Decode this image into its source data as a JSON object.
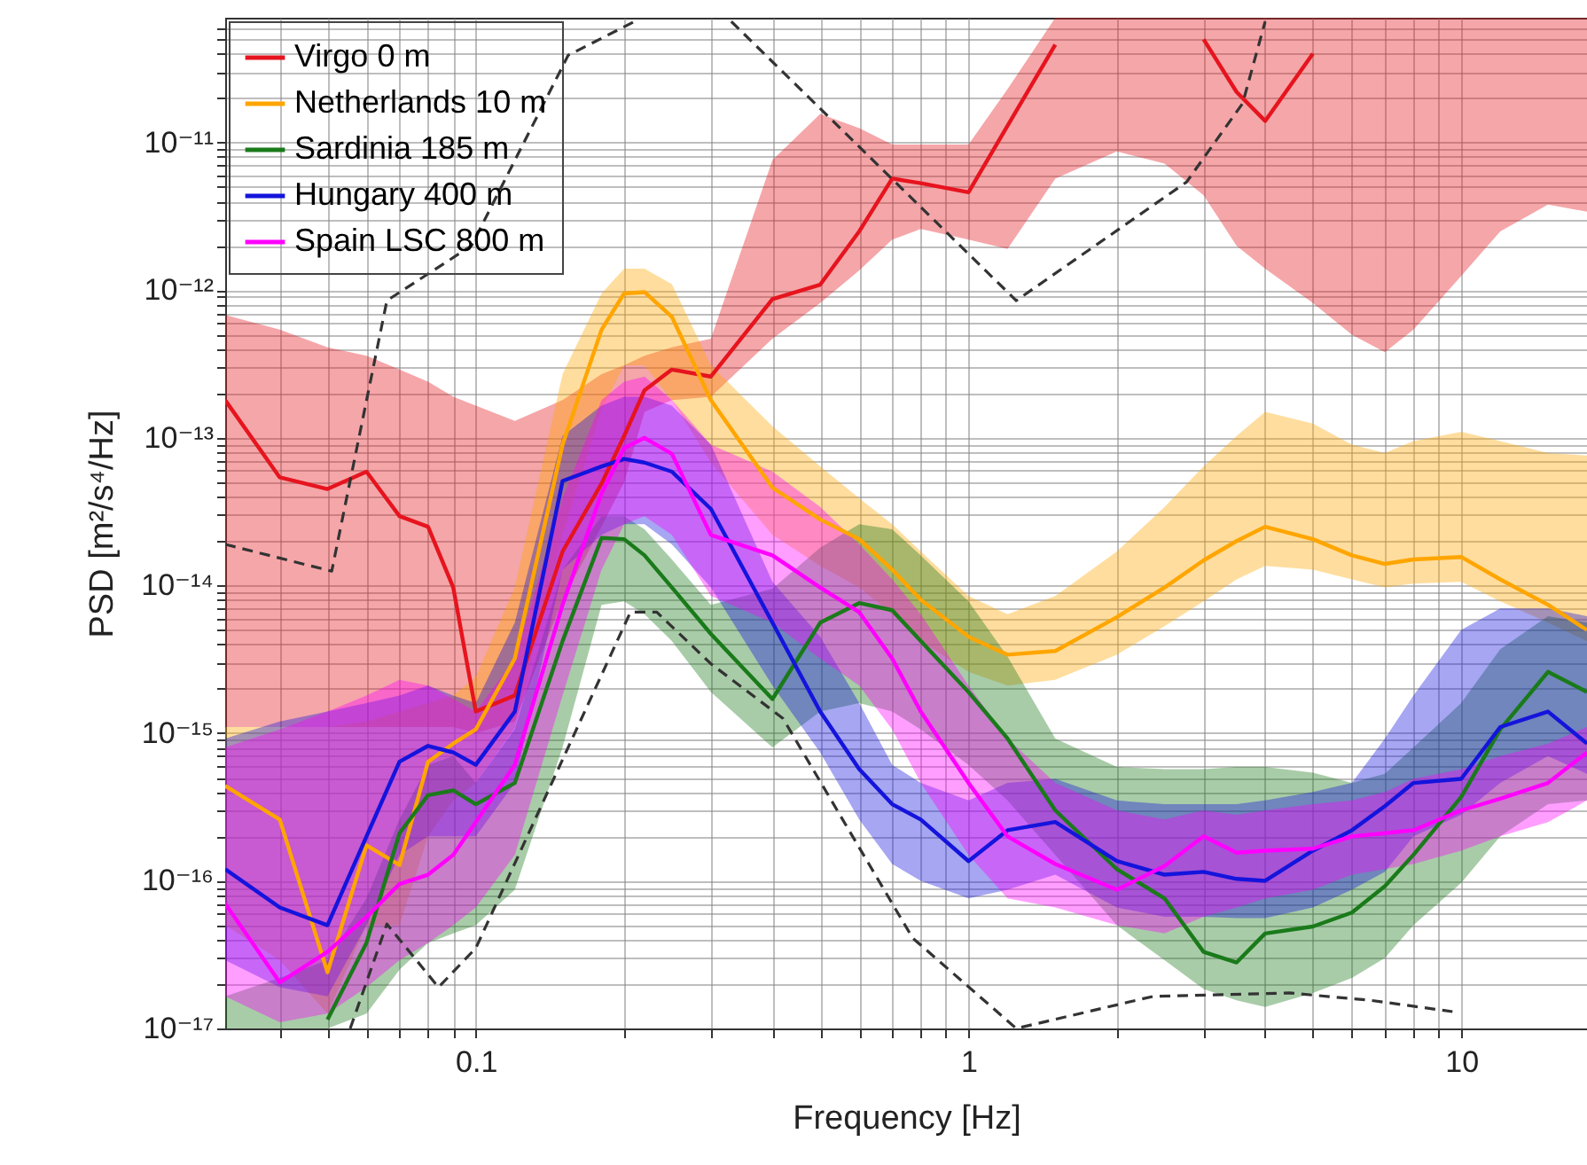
{
  "chart_data": {
    "type": "line",
    "xlabel": "Frequency [Hz]",
    "ylabel": "PSD [m²/s⁴/Hz]",
    "log": "xy",
    "grid": true,
    "legend": "top left",
    "xlim": [
      0.031,
      18
    ],
    "ylim": [
      1e-17,
      7e-11
    ],
    "xticks": [
      {
        "value": 0.04,
        "label": null
      },
      {
        "value": 0.05,
        "label": null
      },
      {
        "value": 0.06,
        "label": null
      },
      {
        "value": 0.07,
        "label": null
      },
      {
        "value": 0.08,
        "label": null
      },
      {
        "value": 0.09,
        "label": null
      },
      0.1,
      {
        "value": 0.2,
        "label": null
      },
      {
        "value": 0.3,
        "label": null
      },
      {
        "value": 0.4,
        "label": null
      },
      {
        "value": 0.5,
        "label": null
      },
      {
        "value": 0.6,
        "label": null
      },
      {
        "value": 0.7,
        "label": null
      },
      {
        "value": 0.8,
        "label": null
      },
      {
        "value": 0.9,
        "label": null
      },
      1,
      {
        "value": 2,
        "label": null
      },
      {
        "value": 3,
        "label": null
      },
      {
        "value": 4,
        "label": null
      },
      {
        "value": 5,
        "label": null
      },
      {
        "value": 6,
        "label": null
      },
      {
        "value": 7,
        "label": null
      },
      {
        "value": 8,
        "label": null
      },
      {
        "value": 9,
        "label": null
      },
      10
    ],
    "yticks": [
      {
        "value": 1e-17,
        "label": "10⁻¹⁷"
      },
      {
        "value": 2e-17,
        "label": null
      },
      {
        "value": 3e-17,
        "label": null
      },
      {
        "value": 4e-17,
        "label": null
      },
      {
        "value": 5e-17,
        "label": null
      },
      {
        "value": 6e-17,
        "label": null
      },
      {
        "value": 7e-17,
        "label": null
      },
      {
        "value": 8e-17,
        "label": null
      },
      {
        "value": 9e-17,
        "label": null
      },
      {
        "value": 1e-16,
        "label": "10⁻¹⁶"
      },
      {
        "value": 2e-16,
        "label": null
      },
      {
        "value": 3e-16,
        "label": null
      },
      {
        "value": 4e-16,
        "label": null
      },
      {
        "value": 5e-16,
        "label": null
      },
      {
        "value": 6e-16,
        "label": null
      },
      {
        "value": 7e-16,
        "label": null
      },
      {
        "value": 8e-16,
        "label": null
      },
      {
        "value": 9e-16,
        "label": null
      },
      {
        "value": 1e-15,
        "label": "10⁻¹⁵"
      },
      {
        "value": 2e-15,
        "label": null
      },
      {
        "value": 3e-15,
        "label": null
      },
      {
        "value": 4e-15,
        "label": null
      },
      {
        "value": 5e-15,
        "label": null
      },
      {
        "value": 6e-15,
        "label": null
      },
      {
        "value": 7e-15,
        "label": null
      },
      {
        "value": 8e-15,
        "label": null
      },
      {
        "value": 9e-15,
        "label": null
      },
      {
        "value": 1e-14,
        "label": "10⁻¹⁴"
      },
      {
        "value": 2e-14,
        "label": null
      },
      {
        "value": 3e-14,
        "label": null
      },
      {
        "value": 4e-14,
        "label": null
      },
      {
        "value": 5e-14,
        "label": null
      },
      {
        "value": 6e-14,
        "label": null
      },
      {
        "value": 7e-14,
        "label": null
      },
      {
        "value": 8e-14,
        "label": null
      },
      {
        "value": 9e-14,
        "label": null
      },
      {
        "value": 1e-13,
        "label": "10⁻¹³"
      },
      {
        "value": 2e-13,
        "label": null
      },
      {
        "value": 3e-13,
        "label": null
      },
      {
        "value": 4e-13,
        "label": null
      },
      {
        "value": 5e-13,
        "label": null
      },
      {
        "value": 6e-13,
        "label": null
      },
      {
        "value": 7e-13,
        "label": null
      },
      {
        "value": 8e-13,
        "label": null
      },
      {
        "value": 9e-13,
        "label": null
      },
      {
        "value": 1e-12,
        "label": "10⁻¹²"
      },
      {
        "value": 2e-12,
        "label": null
      },
      {
        "value": 3e-12,
        "label": null
      },
      {
        "value": 4e-12,
        "label": null
      },
      {
        "value": 5e-12,
        "label": null
      },
      {
        "value": 6e-12,
        "label": null
      },
      {
        "value": 7e-12,
        "label": null
      },
      {
        "value": 8e-12,
        "label": null
      },
      {
        "value": 9e-12,
        "label": null
      },
      {
        "value": 1e-11,
        "label": "10⁻¹¹"
      },
      {
        "value": 2e-11,
        "label": null
      },
      {
        "value": 3e-11,
        "label": null
      },
      {
        "value": 4e-11,
        "label": null
      },
      {
        "value": 5e-11,
        "label": null
      },
      {
        "value": 6e-11,
        "label": null
      }
    ],
    "x": [
      0.031,
      0.04,
      0.05,
      0.06,
      0.07,
      0.08,
      0.09,
      0.1,
      0.12,
      0.15,
      0.18,
      0.2,
      0.22,
      0.25,
      0.3,
      0.4,
      0.5,
      0.6,
      0.7,
      0.8,
      1,
      1.2,
      1.5,
      2,
      2.5,
      3,
      3.5,
      4,
      5,
      6,
      7,
      8,
      10,
      12,
      15,
      18
    ],
    "series": [
      {
        "name": "Virgo 0 m",
        "color": "#e6141e",
        "values": [
          1.8e-13,
          5.4e-14,
          4.5e-14,
          5.9e-14,
          2.95e-14,
          2.5e-14,
          9.7e-15,
          1.4e-15,
          1.8e-15,
          1.7e-14,
          4.9e-14,
          1.03e-13,
          2.1e-13,
          2.9e-13,
          2.6e-13,
          8.7e-13,
          1.09e-12,
          2.5e-12,
          5.7e-12,
          5.3e-12,
          4.6e-12,
          1.3e-11,
          4.6e-11,
          null,
          null,
          5e-11,
          2.2e-11,
          1.4e-11,
          4e-11,
          null,
          null,
          null,
          null,
          null,
          null,
          null
        ],
        "lower": [
          1.1e-15,
          1.1e-15,
          1.1e-15,
          1.1e-15,
          1.1e-15,
          1.1e-15,
          1.1e-15,
          1e-15,
          1.2e-15,
          8e-15,
          2.5e-14,
          5e-14,
          1.5e-13,
          1.8e-13,
          1.9e-13,
          4.7e-13,
          8.2e-13,
          1.36e-12,
          2.2e-12,
          2.6e-12,
          2.2e-12,
          1.9e-12,
          5.7e-12,
          8.7e-12,
          7.2e-12,
          4.4e-12,
          2e-12,
          1.4e-12,
          8.2e-13,
          5e-13,
          3.8e-13,
          5.4e-13,
          1.25e-12,
          2.5e-12,
          3.8e-12,
          3.4e-12
        ],
        "upper": [
          6.8e-13,
          5.4e-13,
          4.1e-13,
          3.6e-13,
          2.9e-13,
          2.4e-13,
          1.9e-13,
          1.65e-13,
          1.3e-13,
          1.8e-13,
          2.7e-13,
          3.1e-13,
          3.6e-13,
          4.1e-13,
          4.7e-13,
          7.6e-12,
          1.56e-11,
          1.25e-11,
          9.7e-12,
          9.7e-12,
          9.7e-12,
          2.3e-11,
          7e-11,
          7e-11,
          7e-11,
          7e-11,
          7e-11,
          7e-11,
          7e-11,
          7e-11,
          7e-11,
          7e-11,
          7e-11,
          7e-11,
          7e-11,
          7e-11
        ]
      },
      {
        "name": "Netherlands 10 m",
        "color": "#ffa500",
        "values": [
          4.4e-16,
          2.6e-16,
          2.4e-17,
          1.74e-16,
          1.28e-16,
          6.4e-16,
          8.5e-16,
          1.06e-15,
          3.2e-15,
          9e-14,
          5.4e-13,
          9.5e-13,
          9.7e-13,
          6.6e-13,
          1.8e-13,
          4.6e-14,
          2.8e-14,
          2.06e-14,
          1.28e-14,
          8e-15,
          4.5e-15,
          3.4e-15,
          3.6e-15,
          6.1e-15,
          9.7e-15,
          1.48e-14,
          2e-14,
          2.5e-14,
          2.06e-14,
          1.6e-14,
          1.4e-14,
          1.5e-14,
          1.56e-14,
          1.1e-14,
          7.4e-15,
          5e-15
        ],
        "lower": [
          5e-17,
          2.9e-17,
          1.26e-17,
          5e-17,
          5e-17,
          2e-16,
          3.5e-16,
          4.6e-16,
          1.1e-15,
          2.2e-14,
          1.56e-13,
          3.1e-13,
          3.1e-13,
          1.8e-13,
          6.8e-14,
          2.2e-14,
          1.36e-14,
          9.7e-15,
          6.4e-15,
          4.2e-15,
          2.6e-15,
          2.1e-15,
          2.3e-15,
          3.4e-15,
          5.3e-15,
          7.8e-15,
          1.1e-14,
          1.36e-14,
          1.28e-14,
          1.1e-14,
          9.7e-15,
          1.03e-14,
          1.06e-14,
          7.8e-15,
          5.6e-15,
          4.2e-15
        ],
        "upper": [
          1.1e-15,
          1.1e-15,
          1.1e-15,
          1.2e-15,
          1.4e-15,
          1.6e-15,
          1.8e-15,
          2.4e-15,
          9.7e-15,
          2.7e-13,
          9.5e-13,
          1.4e-12,
          1.4e-12,
          1.1e-12,
          3.1e-13,
          1.2e-13,
          6.4e-14,
          3.9e-14,
          2.6e-14,
          1.7e-14,
          8.5e-15,
          6.4e-15,
          8.5e-15,
          1.7e-14,
          3.4e-14,
          6.4e-14,
          1.03e-13,
          1.5e-13,
          1.25e-13,
          9e-14,
          7.9e-14,
          9.5e-14,
          1.1e-13,
          9.5e-14,
          7.9e-14,
          7.6e-14
        ]
      },
      {
        "name": "Sardinia 185 m",
        "color": "#1a7a1a",
        "values": [
          null,
          null,
          1.15e-17,
          3.8e-17,
          2.1e-16,
          3.8e-16,
          4.1e-16,
          3.3e-16,
          4.6e-16,
          4.2e-15,
          2.1e-14,
          2.06e-14,
          1.6e-14,
          9.7e-15,
          4.7e-15,
          1.7e-15,
          5.6e-15,
          7.6e-15,
          6.8e-15,
          4.2e-15,
          1.9e-15,
          9.2e-16,
          3e-16,
          1.2e-16,
          7.6e-17,
          3.3e-17,
          2.8e-17,
          4.4e-17,
          4.9e-17,
          6.1e-17,
          9.2e-17,
          1.5e-16,
          3.7e-16,
          1.06e-15,
          2.6e-15,
          1.9e-15
        ],
        "lower": [
          1e-17,
          1e-17,
          1e-17,
          1.26e-17,
          2.5e-17,
          3.8e-17,
          4.4e-17,
          5e-17,
          8.7e-17,
          8e-16,
          7.4e-15,
          7.8e-15,
          6.4e-15,
          4.2e-15,
          1.9e-15,
          8e-16,
          1.4e-15,
          1.6e-15,
          1.4e-15,
          1.06e-15,
          6.1e-16,
          3.5e-16,
          1.5e-16,
          5e-17,
          2.9e-17,
          1.85e-17,
          1.55e-17,
          1.4e-17,
          1.74e-17,
          2.2e-17,
          3e-17,
          5e-17,
          9.7e-17,
          2e-16,
          3.3e-16,
          3.5e-16
        ],
        "upper": [
          1.65e-17,
          2.2e-17,
          2.9e-17,
          7.6e-17,
          2.6e-16,
          6.1e-16,
          7e-16,
          4.6e-16,
          1.06e-15,
          1.28e-14,
          2.95e-14,
          2.95e-14,
          2.4e-14,
          1.5e-14,
          7.4e-15,
          9.5e-15,
          1.8e-14,
          2.6e-14,
          2.4e-14,
          1.6e-14,
          7.8e-15,
          3.3e-15,
          9.2e-16,
          5.9e-16,
          5.7e-16,
          5.7e-16,
          5.9e-16,
          5.9e-16,
          5.4e-16,
          4.6e-16,
          5.3e-16,
          8e-16,
          1.6e-15,
          3.7e-15,
          6.2e-15,
          5.6e-15
        ]
      },
      {
        "name": "Hungary 400 m",
        "color": "#1414dc",
        "values": [
          1.2e-16,
          6.6e-17,
          5e-17,
          2e-16,
          6.4e-16,
          8.2e-16,
          7.4e-16,
          6.1e-16,
          1.4e-15,
          5.1e-14,
          6.4e-14,
          7.2e-14,
          6.8e-14,
          5.9e-14,
          3.3e-14,
          5.6e-15,
          1.4e-15,
          5.7e-16,
          3.3e-16,
          2.6e-16,
          1.36e-16,
          2.2e-16,
          2.5e-16,
          1.36e-16,
          1.1e-16,
          1.15e-16,
          1.03e-16,
          1e-16,
          1.6e-16,
          2.2e-16,
          3.2e-16,
          4.6e-16,
          4.9e-16,
          1.1e-15,
          1.4e-15,
          8.5e-16
        ],
        "lower": [
          2.9e-17,
          1.9e-17,
          1.65e-17,
          5e-17,
          1.5e-16,
          2e-16,
          2e-16,
          2e-16,
          4.6e-16,
          1.28e-14,
          2.2e-14,
          2.6e-14,
          2.6e-14,
          1.9e-14,
          9.7e-15,
          2.1e-15,
          7.4e-16,
          2.6e-16,
          1.3e-16,
          1e-16,
          7.6e-17,
          8.7e-17,
          1.1e-16,
          6.6e-17,
          5.7e-17,
          5.7e-17,
          5.6e-17,
          5.6e-17,
          6.6e-17,
          8.7e-17,
          1.15e-16,
          2e-16,
          2.8e-16,
          4.6e-16,
          7e-16,
          5.3e-16
        ],
        "upper": [
          9.2e-16,
          1.2e-15,
          1.4e-15,
          1.6e-15,
          1.8e-15,
          2.1e-15,
          1.8e-15,
          1.6e-15,
          5.6e-15,
          1.03e-13,
          1.65e-13,
          1.9e-13,
          1.9e-13,
          1.65e-13,
          9e-14,
          1.06e-14,
          4.5e-15,
          1.6e-15,
          6.1e-16,
          4.6e-16,
          3.5e-16,
          4.6e-16,
          4.9e-16,
          3.5e-16,
          3.3e-16,
          3.3e-16,
          3.3e-16,
          3.5e-16,
          4e-16,
          4.6e-16,
          9.2e-16,
          1.8e-15,
          5e-15,
          7e-15,
          7e-15,
          6.2e-15
        ]
      },
      {
        "name": "Spain LSC 800 m",
        "color": "#ff00ff",
        "values": [
          7e-17,
          2.05e-17,
          3.3e-17,
          5.7e-17,
          9.5e-17,
          1.1e-16,
          1.5e-16,
          2.5e-16,
          6.1e-16,
          7.4e-15,
          4.2e-14,
          8.5e-14,
          1e-13,
          7.8e-14,
          2.2e-14,
          1.6e-14,
          9.7e-15,
          6.6e-15,
          3.2e-15,
          1.4e-15,
          4.6e-16,
          2e-16,
          1.3e-16,
          8.7e-17,
          1.26e-16,
          2e-16,
          1.55e-16,
          1.6e-16,
          1.65e-16,
          2e-16,
          2.1e-16,
          2.2e-16,
          3e-16,
          3.6e-16,
          4.6e-16,
          7.4e-16
        ],
        "lower": [
          1.65e-17,
          1.1e-17,
          1.26e-17,
          1.9e-17,
          2.9e-17,
          3.8e-17,
          5e-17,
          6.6e-17,
          1.5e-16,
          1.8e-15,
          1.28e-14,
          2.6e-14,
          2.95e-14,
          2.2e-14,
          8.5e-15,
          5.6e-15,
          3.2e-15,
          2.1e-15,
          1.06e-15,
          4.6e-16,
          1.5e-16,
          7.6e-17,
          6.6e-17,
          5e-17,
          4.4e-17,
          5.7e-17,
          6.6e-17,
          7.6e-17,
          8.7e-17,
          1.1e-16,
          1.2e-16,
          1.3e-16,
          1.6e-16,
          2e-16,
          2.5e-16,
          3.5e-16
        ],
        "upper": [
          8e-16,
          1.06e-15,
          1.4e-15,
          1.8e-15,
          2.3e-15,
          2.1e-15,
          1.7e-15,
          1.4e-15,
          3.2e-15,
          3.9e-14,
          1.8e-13,
          2.4e-13,
          2.6e-13,
          1.8e-13,
          9e-14,
          5.9e-14,
          3.4e-14,
          1.9e-14,
          1.1e-14,
          6.4e-15,
          2.1e-15,
          9.2e-16,
          4.6e-16,
          3e-16,
          2.6e-16,
          3e-16,
          2.8e-16,
          3e-16,
          3.3e-16,
          3.5e-16,
          4e-16,
          4.9e-16,
          5.7e-16,
          7e-16,
          8.5e-16,
          1.1e-15
        ]
      },
      {
        "type": "line",
        "color": "#333333",
        "line_style": "dashed",
        "x": [
          0.031,
          0.051,
          0.066,
          0.098,
          0.154,
          0.21,
          0.3,
          0.33,
          1.25,
          2.77,
          3.6,
          4.0
        ],
        "values": [
          1.9e-14,
          1.25e-14,
          8.5e-13,
          2e-12,
          3.9e-11,
          6.6e-11,
          null,
          6.6e-11,
          8.5e-13,
          5.4e-12,
          1.84e-11,
          6.6e-11
        ]
      },
      {
        "type": "line",
        "color": "#333333",
        "line_style": "dashed",
        "x": [
          0.0556,
          0.066,
          0.084,
          0.1,
          0.206,
          0.233,
          0.3,
          0.42,
          0.77,
          1.25,
          2.37,
          4.48,
          6.56,
          9.6
        ],
        "values": [
          1e-17,
          5.1e-17,
          1.9e-17,
          3.5e-17,
          6.6e-15,
          6.6e-15,
          2.95e-15,
          1.26e-15,
          4.1e-17,
          1e-17,
          1.65e-17,
          1.74e-17,
          1.55e-17,
          1.3e-17
        ]
      }
    ]
  }
}
